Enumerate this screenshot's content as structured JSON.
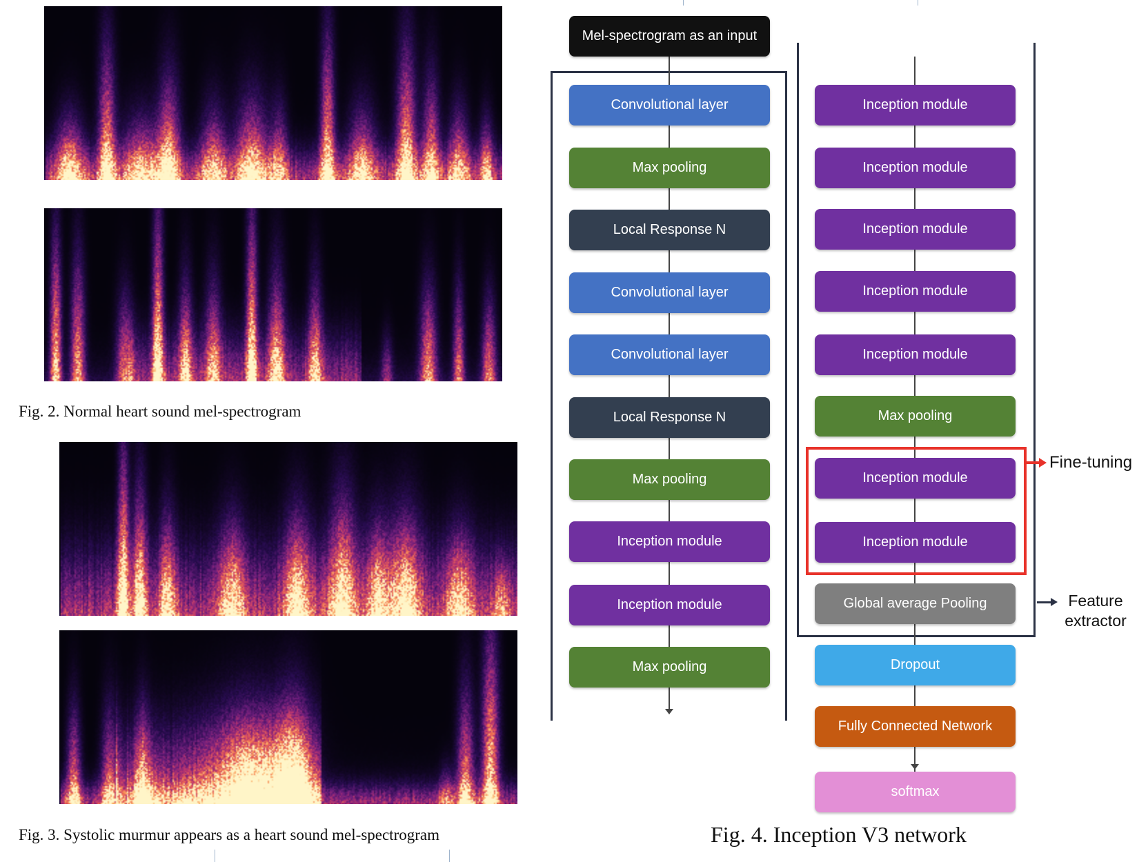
{
  "captions": {
    "fig2": "Fig. 2.  Normal heart sound mel-spectrogram",
    "fig3": "Fig. 3.  Systolic murmur appears as a heart sound mel-spectrogram",
    "fig4": "Fig. 4.  Inception V3 network"
  },
  "diagram": {
    "input_label": "Mel-spectrogram as an input",
    "left_column": [
      "Convolutional layer",
      "Max pooling",
      "Local Response N",
      "Convolutional layer",
      "Convolutional layer",
      "Local Response N",
      "Max pooling",
      "Inception module",
      "Inception module",
      "Max pooling"
    ],
    "right_column": [
      "Inception module",
      "Inception module",
      "Inception module",
      "Inception module",
      "Inception module",
      "Max pooling",
      "Inception module",
      "Inception module",
      "Global average Pooling"
    ],
    "head": [
      "Dropout",
      "Fully Connected Network",
      "softmax"
    ],
    "fine_tuning_label": "Fine-tuning",
    "feature_extractor_label": [
      "Feature",
      "extractor"
    ],
    "colors": {
      "input": "#111111",
      "conv": "#4472c4",
      "pool": "#548235",
      "lrn": "#333f50",
      "inception": "#7030a0",
      "gap": "#7f7f7f",
      "dropout": "#3fa9e8",
      "fc": "#c55a11",
      "softmax": "#e38fd6",
      "highlight": "#e8322a"
    }
  }
}
